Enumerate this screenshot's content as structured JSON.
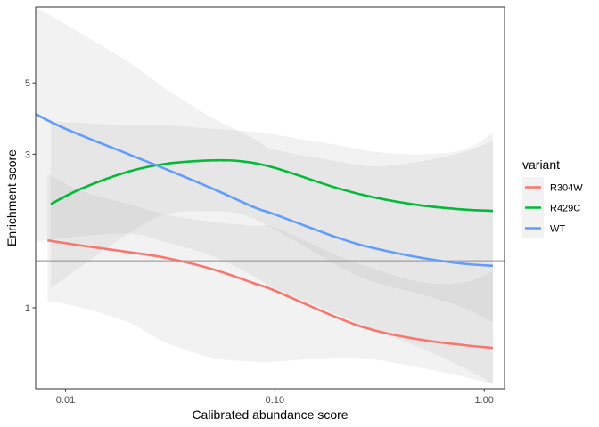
{
  "chart_data": {
    "type": "line",
    "xlabel": "Calibrated abundance score",
    "ylabel": "Enrichment score",
    "x_scale": "log10",
    "y_scale": "log",
    "xlim": [
      0.0072,
      1.25
    ],
    "ylim": [
      0.56,
      8.6
    ],
    "x_ticks": [
      0.01,
      0.1,
      1.0
    ],
    "x_tick_labels": [
      "0.01",
      "0.10",
      "1.00"
    ],
    "y_ticks": [
      1,
      3,
      5
    ],
    "y_tick_labels": [
      "1",
      "3",
      "5"
    ],
    "hline": 1.4,
    "grid": false,
    "legend": {
      "title": "variant",
      "placement": "right"
    },
    "series": [
      {
        "name": "R304W",
        "color": "#F8766D",
        "x": [
          0.0082,
          0.012,
          0.02,
          0.03,
          0.05,
          0.08,
          0.1,
          0.2,
          0.3,
          0.5,
          0.8,
          1.1
        ],
        "y": [
          1.62,
          1.56,
          1.49,
          1.43,
          1.32,
          1.19,
          1.13,
          0.93,
          0.85,
          0.795,
          0.765,
          0.75
        ],
        "lower": [
          1.05,
          1.0,
          0.9,
          0.78,
          0.7,
          0.68,
          0.68,
          0.7,
          0.69,
          0.65,
          0.61,
          0.58
        ],
        "upper": [
          2.6,
          2.3,
          2.1,
          1.95,
          1.85,
          1.8,
          1.78,
          1.45,
          1.32,
          1.2,
          1.2,
          1.3
        ]
      },
      {
        "name": "R429C",
        "color": "#00BA38",
        "x": [
          0.0085,
          0.012,
          0.02,
          0.03,
          0.05,
          0.07,
          0.1,
          0.2,
          0.3,
          0.5,
          0.8,
          1.1
        ],
        "y": [
          2.1,
          2.35,
          2.65,
          2.8,
          2.87,
          2.85,
          2.72,
          2.35,
          2.2,
          2.08,
          2.02,
          2.0
        ],
        "lower": [
          1.15,
          1.35,
          1.7,
          1.95,
          2.0,
          1.95,
          1.75,
          1.35,
          1.2,
          1.1,
          1.0,
          0.9
        ],
        "upper": [
          3.8,
          3.75,
          3.7,
          3.7,
          3.6,
          3.55,
          3.45,
          3.2,
          3.05,
          3.0,
          3.1,
          3.5
        ]
      },
      {
        "name": "WT",
        "color": "#619CFF",
        "x": [
          0.0072,
          0.01,
          0.02,
          0.03,
          0.05,
          0.08,
          0.1,
          0.2,
          0.3,
          0.5,
          0.8,
          1.1
        ],
        "y": [
          4.0,
          3.6,
          3.0,
          2.7,
          2.35,
          2.05,
          1.95,
          1.65,
          1.53,
          1.43,
          1.37,
          1.35
        ],
        "lower": [
          1.6,
          1.65,
          1.7,
          1.6,
          1.45,
          1.25,
          1.15,
          0.95,
          0.85,
          0.75,
          0.65,
          0.58
        ],
        "upper": [
          8.6,
          7.6,
          5.8,
          4.8,
          3.9,
          3.35,
          3.1,
          2.85,
          2.75,
          2.85,
          3.05,
          3.3
        ]
      }
    ]
  }
}
